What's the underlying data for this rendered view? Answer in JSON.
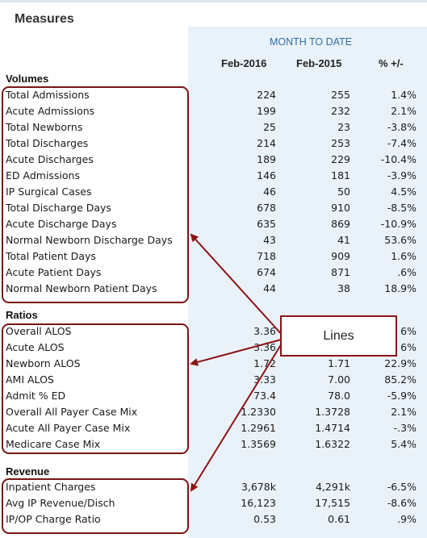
{
  "header": {
    "title": "Measures",
    "period_label": "MONTH TO DATE"
  },
  "columns": [
    "Feb-2016",
    "Feb-2015",
    "% +/-"
  ],
  "sections": [
    {
      "title": "Volumes",
      "rows": [
        [
          "Total Admissions",
          "224",
          "255",
          "1.4%"
        ],
        [
          "Acute Admissions",
          "199",
          "232",
          "2.1%"
        ],
        [
          "Total Newborns",
          "25",
          "23",
          "-3.8%"
        ],
        [
          "Total Discharges",
          "214",
          "253",
          "-7.4%"
        ],
        [
          "Acute Discharges",
          "189",
          "229",
          "-10.4%"
        ],
        [
          "ED Admissions",
          "146",
          "181",
          "-3.9%"
        ],
        [
          "IP Surgical Cases",
          "46",
          "50",
          "4.5%"
        ],
        [
          "Total Discharge Days",
          "678",
          "910",
          "-8.5%"
        ],
        [
          "Acute Discharge Days",
          "635",
          "869",
          "-10.9%"
        ],
        [
          "Normal Newborn Discharge Days",
          "43",
          "41",
          "53.6%"
        ],
        [
          "Total Patient Days",
          "718",
          "909",
          "1.6%"
        ],
        [
          "Acute Patient Days",
          "674",
          "871",
          ".6%"
        ],
        [
          "Normal Newborn Patient Days",
          "44",
          "38",
          "18.9%"
        ]
      ]
    },
    {
      "title": "Ratios",
      "rows": [
        [
          "Overall ALOS",
          "3.36",
          "",
          "6%"
        ],
        [
          "Acute ALOS",
          "3.36",
          "",
          "6%"
        ],
        [
          "Newborn ALOS",
          "1.72",
          "1.71",
          "22.9%"
        ],
        [
          "AMI ALOS",
          "3.33",
          "7.00",
          "85.2%"
        ],
        [
          "Admit % ED",
          "73.4",
          "78.0",
          "-5.9%"
        ],
        [
          "Overall All Payer Case Mix",
          "1.2330",
          "1.3728",
          "2.1%"
        ],
        [
          "Acute All Payer Case Mix",
          "1.2961",
          "1.4714",
          "-.3%"
        ],
        [
          "Medicare Case Mix",
          "1.3569",
          "1.6322",
          "5.4%"
        ]
      ]
    },
    {
      "title": "Revenue",
      "rows": [
        [
          "Inpatient Charges",
          "3,678k",
          "4,291k",
          "-6.5%"
        ],
        [
          "Avg IP Revenue/Disch",
          "16,123",
          "17,515",
          "-8.6%"
        ],
        [
          "IP/OP Charge Ratio",
          "0.53",
          "0.61",
          ".9%"
        ]
      ]
    }
  ],
  "annotation": {
    "callout_label": "Lines",
    "color": "#8b1414"
  },
  "colors": {
    "period_header": "#2d6fa6",
    "band": "#eaf2f9"
  }
}
